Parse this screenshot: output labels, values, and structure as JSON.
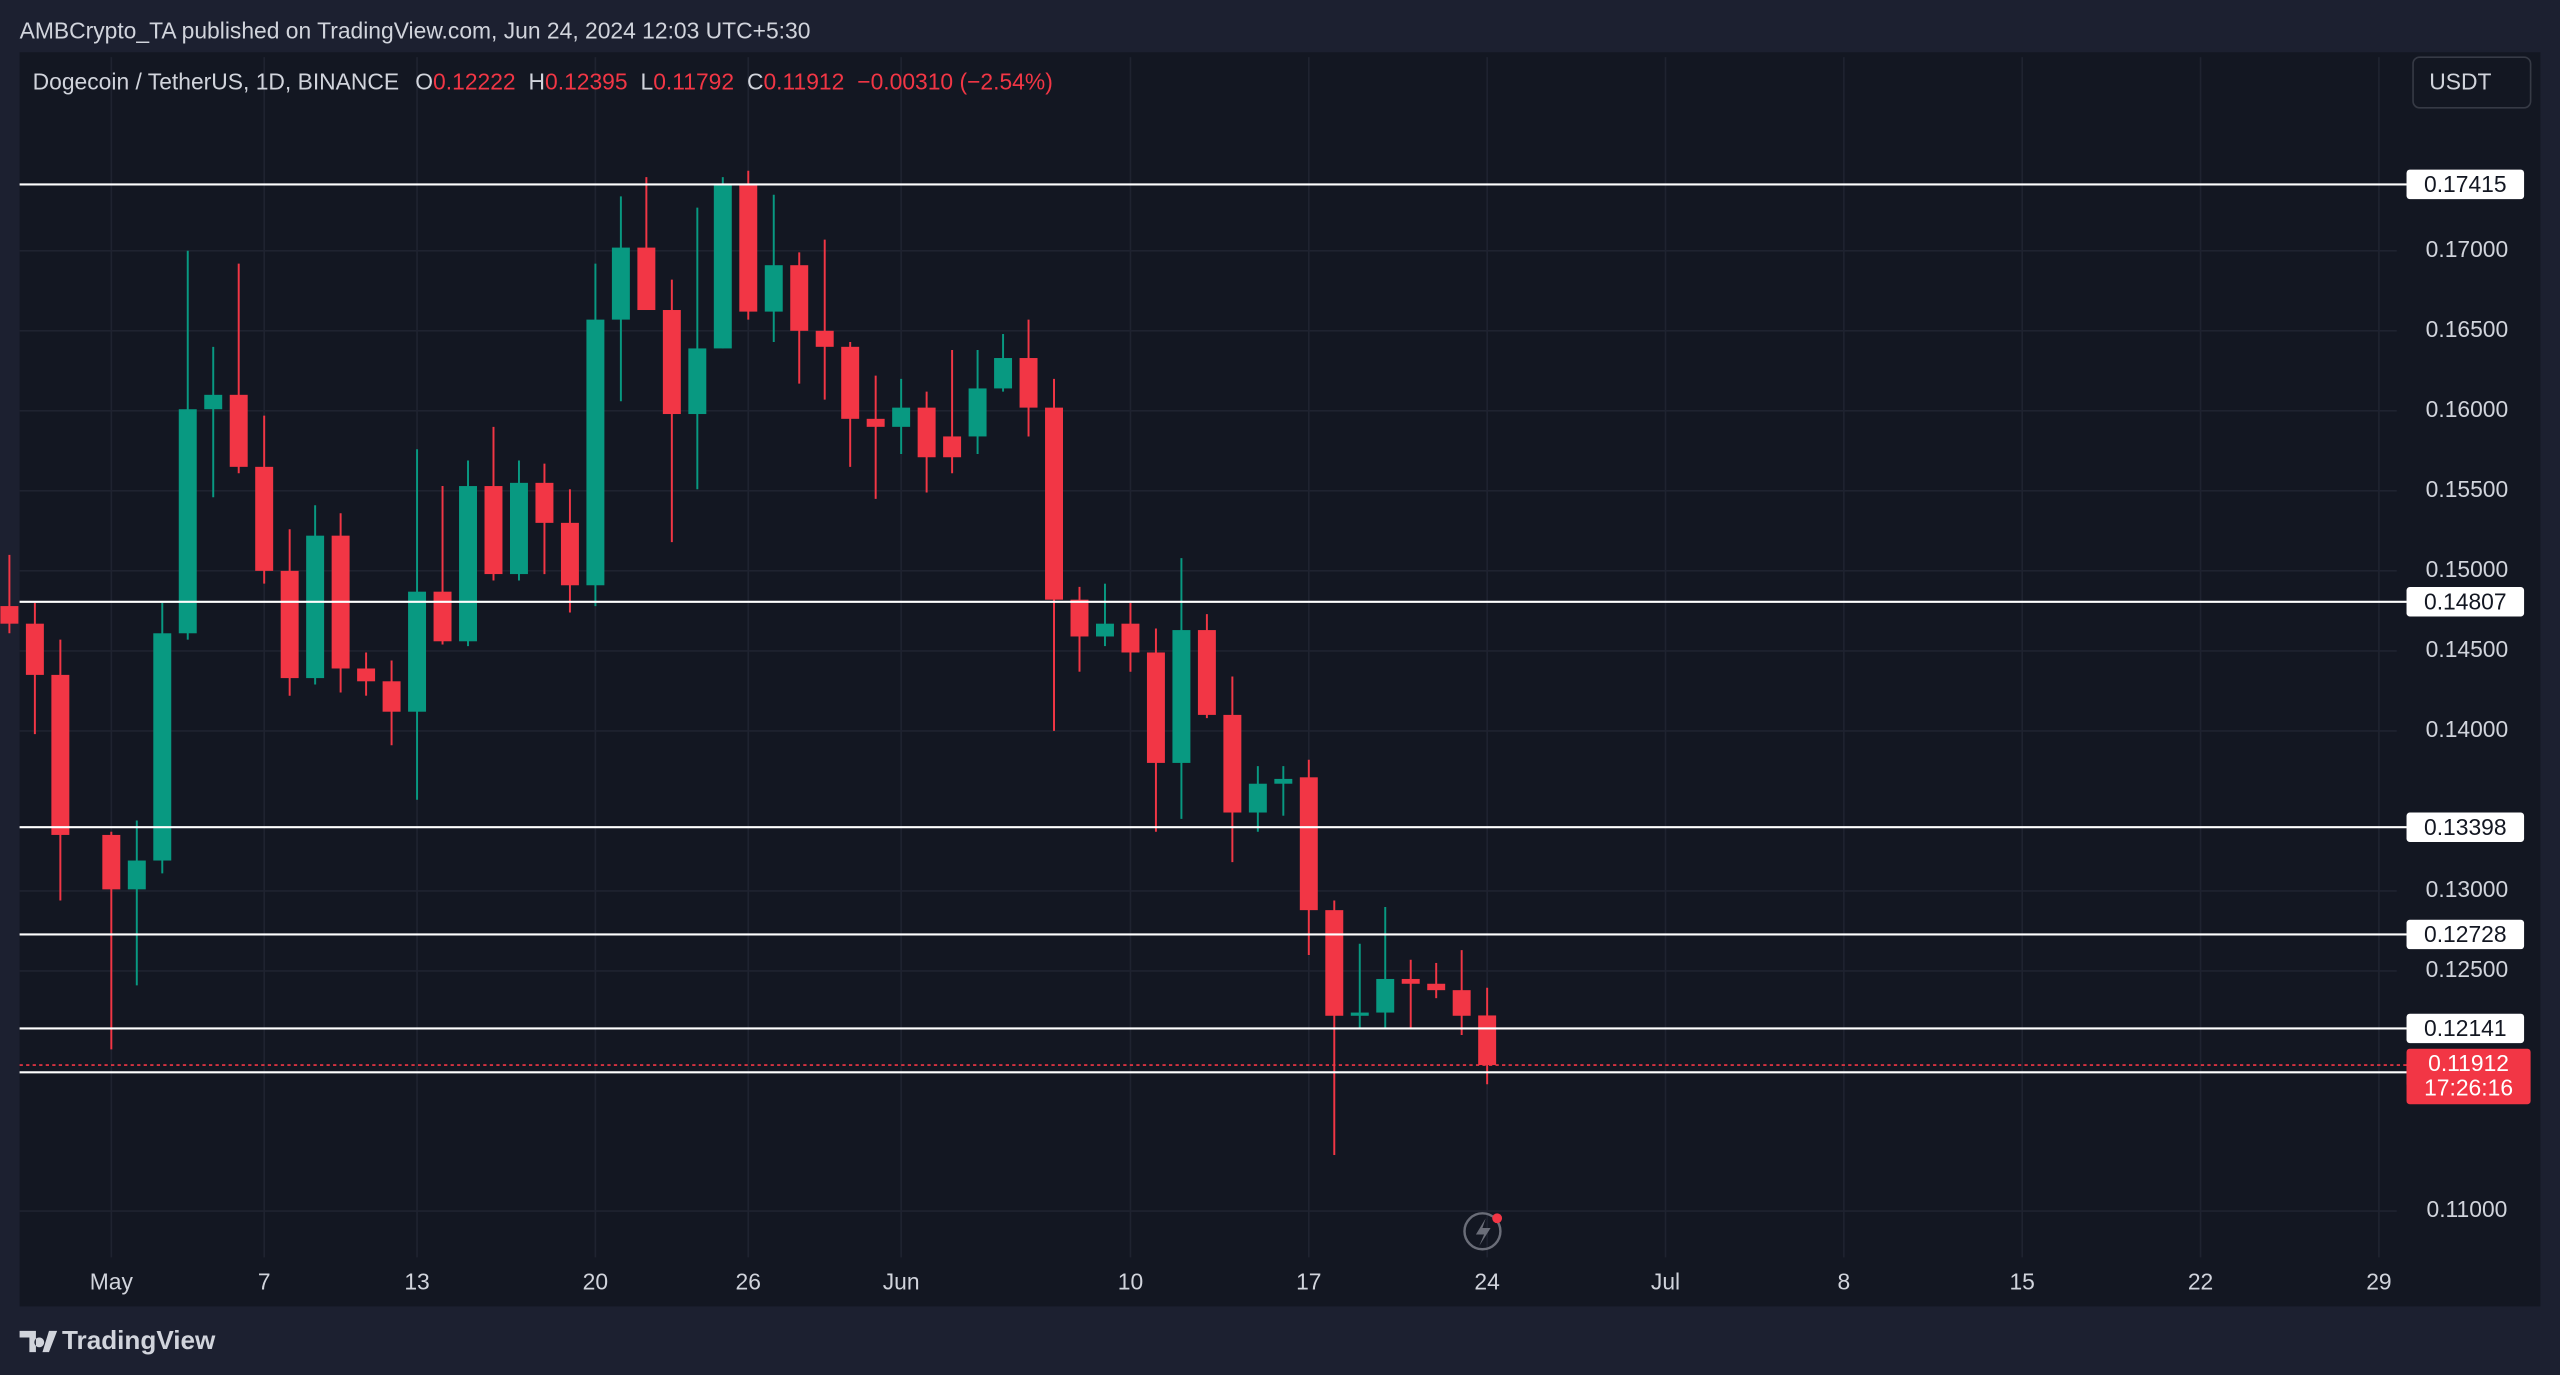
{
  "publisher": "AMBCrypto_TA published on TradingView.com, Jun 24, 2024 12:03 UTC+5:30",
  "currency": "USDT",
  "brand": "TradingView",
  "chart_data": {
    "type": "candlestick",
    "title": "Dogecoin / TetherUS, 1D, BINANCE",
    "ohlc_header": {
      "open_label": "O",
      "open": "0.12222",
      "high_label": "H",
      "high": "0.12395",
      "low_label": "L",
      "low": "0.11792",
      "close_label": "C",
      "close": "0.11912",
      "change": "−0.00310 (−2.54%)"
    },
    "up_color": "#089981",
    "down_color": "#f23645",
    "x": [
      -3,
      -2,
      -1,
      1,
      2,
      3,
      4,
      5,
      6,
      7,
      8,
      9,
      10,
      11,
      12,
      13,
      14,
      15,
      16,
      17,
      18,
      19,
      20,
      21,
      22,
      23,
      24,
      25,
      26,
      27,
      28,
      29,
      30,
      31,
      32,
      33,
      34,
      35,
      36,
      37,
      38,
      39,
      40,
      41,
      42,
      43,
      44,
      45,
      46,
      47,
      48,
      49,
      50,
      51,
      52,
      53,
      54,
      55
    ],
    "open": [
      0.1478,
      0.1467,
      0.1435,
      0.1335,
      0.1301,
      0.1319,
      0.1461,
      0.1601,
      0.161,
      0.1565,
      0.15,
      0.1433,
      0.1522,
      0.1439,
      0.1431,
      0.1412,
      0.1487,
      0.1456,
      0.1553,
      0.1498,
      0.1555,
      0.153,
      0.1491,
      0.1657,
      0.1702,
      0.1663,
      0.1598,
      0.1639,
      0.1741,
      0.1662,
      0.1691,
      0.165,
      0.164,
      0.1595,
      0.159,
      0.1602,
      0.1584,
      0.1584,
      0.1614,
      0.1633,
      0.1602,
      0.1482,
      0.1459,
      0.1467,
      0.1449,
      0.138,
      0.1463,
      0.141,
      0.1349,
      0.1367,
      0.1371,
      0.1288,
      0.1222,
      0.1224,
      0.1245,
      0.1242,
      0.1238,
      0.12222
    ],
    "high": [
      0.151,
      0.148,
      0.1457,
      0.1337,
      0.1344,
      0.148,
      0.17,
      0.164,
      0.1692,
      0.1597,
      0.1526,
      0.1541,
      0.1536,
      0.1449,
      0.1444,
      0.1576,
      0.1553,
      0.1569,
      0.159,
      0.1569,
      0.1567,
      0.1551,
      0.1692,
      0.1734,
      0.1746,
      0.1682,
      0.1727,
      0.1746,
      0.175,
      0.1735,
      0.1699,
      0.1707,
      0.1643,
      0.1622,
      0.162,
      0.1612,
      0.1638,
      0.1638,
      0.1648,
      0.1657,
      0.162,
      0.149,
      0.1492,
      0.148,
      0.1464,
      0.1508,
      0.1473,
      0.1434,
      0.1378,
      0.1378,
      0.1382,
      0.1294,
      0.1267,
      0.129,
      0.1257,
      0.1255,
      0.1263,
      0.12395
    ],
    "low": [
      0.1461,
      0.1398,
      0.1294,
      0.1201,
      0.1241,
      0.1311,
      0.1457,
      0.1546,
      0.1561,
      0.1492,
      0.1422,
      0.1429,
      0.1424,
      0.1422,
      0.1391,
      0.1357,
      0.1454,
      0.1453,
      0.1494,
      0.1494,
      0.1498,
      0.1474,
      0.1478,
      0.1606,
      0.1663,
      0.1518,
      0.1551,
      0.1639,
      0.1657,
      0.1643,
      0.1617,
      0.1607,
      0.1565,
      0.1545,
      0.1573,
      0.1549,
      0.1561,
      0.1573,
      0.1612,
      0.1584,
      0.14,
      0.1437,
      0.1453,
      0.1437,
      0.1337,
      0.1345,
      0.1408,
      0.1318,
      0.1337,
      0.1347,
      0.126,
      0.1135,
      0.1214,
      0.1214,
      0.1214,
      0.1233,
      0.121,
      0.11792
    ],
    "close": [
      0.1467,
      0.1435,
      0.1335,
      0.1301,
      0.1319,
      0.1461,
      0.1601,
      0.161,
      0.1565,
      0.15,
      0.1433,
      0.1522,
      0.1439,
      0.1431,
      0.1412,
      0.1487,
      0.1456,
      0.1553,
      0.1498,
      0.1555,
      0.153,
      0.1491,
      0.1657,
      0.1702,
      0.1663,
      0.1598,
      0.1639,
      0.1741,
      0.1662,
      0.1691,
      0.165,
      0.164,
      0.1595,
      0.159,
      0.1602,
      0.1571,
      0.1571,
      0.1614,
      0.1633,
      0.1602,
      0.1482,
      0.1459,
      0.1467,
      0.1449,
      0.138,
      0.1463,
      0.141,
      0.1349,
      0.1367,
      0.137,
      0.1288,
      0.1222,
      0.1224,
      0.1245,
      0.1242,
      0.1238,
      0.1222,
      0.11912
    ],
    "xlim": [
      -2.6,
      90.7
    ],
    "xticks": [
      {
        "value": 1,
        "label": "May"
      },
      7,
      13,
      20,
      26,
      {
        "value": 32,
        "label": "Jun"
      },
      {
        "value": 41,
        "label": "10"
      },
      {
        "value": 48,
        "label": "17"
      },
      {
        "value": 55,
        "label": "24"
      },
      {
        "value": 62,
        "label": "Jul"
      },
      {
        "value": 69,
        "label": "8"
      },
      {
        "value": 76,
        "label": "15"
      },
      {
        "value": 83,
        "label": "22"
      },
      {
        "value": 90,
        "label": "29"
      }
    ],
    "ylim": [
      0.1071,
      0.1821
    ],
    "yticks": [
      {
        "value": 0.11,
        "label": "0.11000"
      },
      {
        "value": 0.125,
        "label": "0.12500"
      },
      {
        "value": 0.13,
        "label": "0.13000"
      },
      {
        "value": 0.14,
        "label": "0.14000"
      },
      {
        "value": 0.145,
        "label": "0.14500"
      },
      {
        "value": 0.15,
        "label": "0.15000"
      },
      {
        "value": 0.155,
        "label": "0.15500"
      },
      {
        "value": 0.16,
        "label": "0.16000"
      },
      {
        "value": 0.165,
        "label": "0.16500"
      },
      {
        "value": 0.17,
        "label": "0.17000"
      }
    ],
    "grid": true,
    "levels": [
      0.17415,
      0.14807,
      0.13398,
      0.12728,
      0.12141,
      0.11867
    ],
    "last_price": 0.11912,
    "countdown": "17:26:16"
  }
}
